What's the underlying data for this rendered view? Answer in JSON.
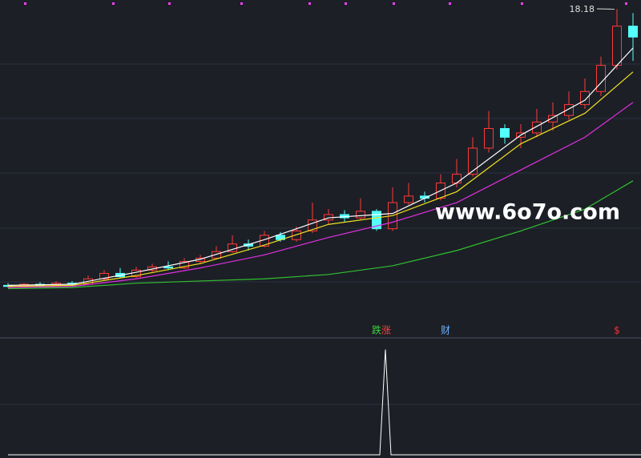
{
  "chart_data": {
    "type": "candlestick",
    "ylim": [
      5,
      18.6
    ],
    "candles": {
      "open": [
        5.5,
        5.45,
        5.55,
        5.5,
        5.6,
        5.55,
        5.8,
        6.05,
        5.9,
        6.2,
        6.35,
        6.3,
        6.6,
        6.75,
        7.05,
        7.4,
        7.3,
        7.8,
        7.6,
        8.0,
        8.5,
        8.75,
        8.6,
        8.9,
        8.1,
        9.3,
        9.6,
        9.5,
        10.2,
        10.6,
        11.8,
        12.7,
        12.3,
        12.5,
        13.0,
        13.3,
        13.8,
        14.4,
        15.6,
        17.4
      ],
      "close": [
        5.45,
        5.55,
        5.5,
        5.6,
        5.55,
        5.8,
        6.05,
        5.9,
        6.2,
        6.35,
        6.3,
        6.6,
        6.75,
        7.05,
        7.4,
        7.3,
        7.8,
        7.6,
        8.0,
        8.5,
        8.75,
        8.6,
        8.9,
        8.1,
        9.3,
        9.6,
        9.5,
        10.2,
        10.6,
        11.8,
        12.7,
        12.3,
        12.5,
        13.0,
        13.3,
        13.8,
        14.4,
        15.6,
        17.4,
        16.9
      ],
      "high": [
        5.6,
        5.6,
        5.65,
        5.7,
        5.7,
        5.95,
        6.2,
        6.3,
        6.35,
        6.5,
        6.6,
        6.75,
        6.9,
        7.3,
        7.8,
        7.6,
        8.0,
        7.95,
        8.2,
        9.3,
        9.0,
        8.95,
        9.5,
        9.0,
        10.0,
        10.2,
        9.8,
        10.6,
        11.3,
        12.3,
        13.5,
        12.9,
        12.9,
        13.6,
        13.9,
        14.4,
        15.0,
        16.0,
        18.18,
        18.0
      ],
      "low": [
        5.4,
        5.4,
        5.45,
        5.45,
        5.5,
        5.5,
        5.75,
        5.85,
        5.85,
        6.1,
        6.2,
        6.25,
        6.5,
        6.7,
        7.0,
        7.1,
        7.25,
        7.5,
        7.5,
        7.9,
        8.3,
        8.4,
        8.5,
        8.0,
        8.0,
        9.2,
        9.3,
        9.4,
        10.0,
        10.5,
        11.6,
        12.0,
        11.8,
        12.3,
        12.6,
        13.1,
        13.6,
        14.2,
        15.4,
        15.8
      ],
      "up_color": "#ff3b3b",
      "down_color": "#54ffff"
    },
    "ma_x": [
      0,
      4,
      8,
      12,
      16,
      20,
      24,
      28,
      32,
      36,
      39
    ],
    "ma": [
      {
        "color": "#ffffff",
        "values": [
          5.5,
          5.55,
          6.1,
          6.7,
          7.6,
          8.6,
          8.8,
          10.2,
          12.4,
          14.0,
          16.4
        ]
      },
      {
        "color": "#f0e020",
        "values": [
          5.45,
          5.5,
          5.95,
          6.5,
          7.35,
          8.3,
          8.7,
          9.8,
          12.0,
          13.4,
          15.3
        ]
      },
      {
        "color": "#e030e0",
        "values": [
          5.4,
          5.45,
          5.8,
          6.3,
          6.9,
          7.7,
          8.4,
          9.3,
          10.8,
          12.3,
          13.9
        ]
      },
      {
        "color": "#30c030",
        "values": [
          5.35,
          5.4,
          5.6,
          5.7,
          5.8,
          6.0,
          6.4,
          7.1,
          8.0,
          9.0,
          10.3
        ]
      }
    ],
    "max_label": 18.18,
    "watermark": "www.6o7o.com",
    "markers": [
      {
        "text": "跌",
        "x": 23,
        "color": "#40d040"
      },
      {
        "text": "涨",
        "x": 23.6,
        "color": "#ff4040"
      },
      {
        "text": "财",
        "x": 27.3,
        "color": "#6fb0ff"
      },
      {
        "text": "$",
        "x": 38,
        "color": "#ff3030"
      }
    ],
    "indicator": {
      "x": [
        0,
        23.2,
        23.55,
        23.9,
        39.5
      ],
      "values": [
        0,
        0,
        1,
        0,
        0
      ],
      "ylim": [
        0,
        1.05
      ],
      "color": "#ffffff"
    }
  }
}
